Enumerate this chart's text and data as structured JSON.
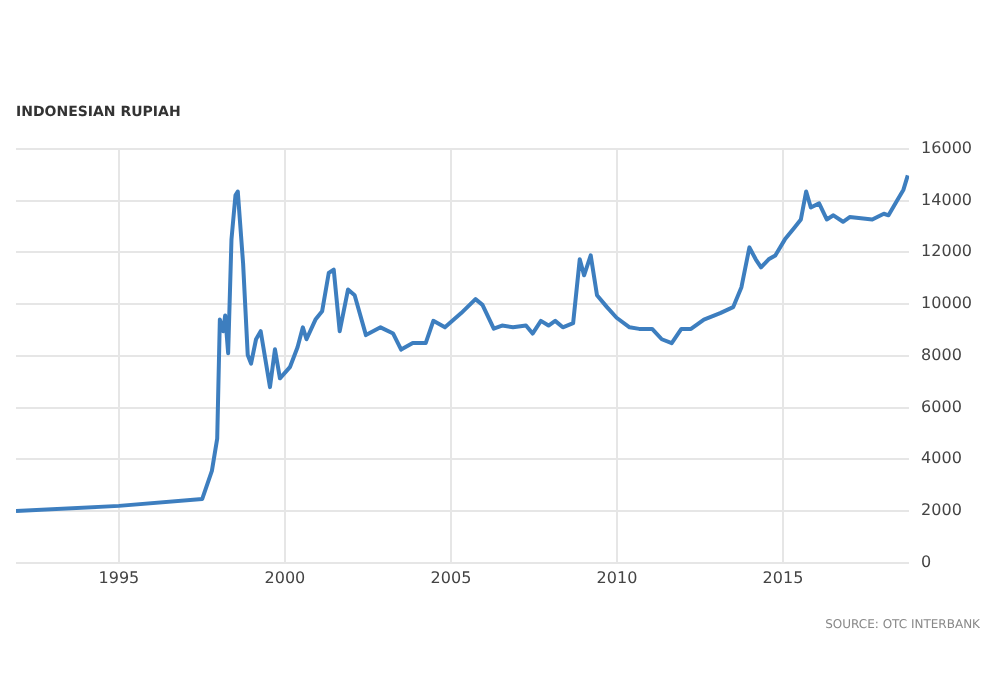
{
  "chart_data": {
    "type": "line",
    "title": "INDONESIAN RUPIAH",
    "annotations": [
      "SOURCE: OTC INTERBANK"
    ],
    "x": [
      1991.9,
      1995,
      1997.51,
      1997.8,
      1997.96,
      1998.04,
      1998.14,
      1998.2,
      1998.29,
      1998.39,
      1998.51,
      1998.58,
      1998.74,
      1998.88,
      1998.98,
      1999.13,
      1999.27,
      1999.55,
      1999.7,
      1999.85,
      2000.15,
      2000.38,
      2000.54,
      2000.65,
      2000.92,
      2001.12,
      2001.32,
      2001.47,
      2001.65,
      2001.9,
      2002.1,
      2002.44,
      2002.88,
      2003.26,
      2003.5,
      2003.85,
      2004.24,
      2004.47,
      2004.82,
      2005.31,
      2005.74,
      2005.95,
      2006.29,
      2006.54,
      2006.87,
      2007.26,
      2007.46,
      2007.71,
      2007.94,
      2008.14,
      2008.37,
      2008.68,
      2008.88,
      2009.01,
      2009.21,
      2009.4,
      2009.7,
      2009.99,
      2010.38,
      2010.67,
      2011.06,
      2011.35,
      2011.65,
      2011.94,
      2012.23,
      2012.62,
      2013.11,
      2013.5,
      2013.75,
      2013.99,
      2014.18,
      2014.34,
      2014.57,
      2014.77,
      2015.06,
      2015.35,
      2015.54,
      2015.7,
      2015.84,
      2016.09,
      2016.32,
      2016.52,
      2016.81,
      2017.01,
      2017.69,
      2018.04,
      2018.18,
      2018.43,
      2018.63,
      2018.76
    ],
    "series": [
      {
        "color": "#3d7ebf",
        "values": [
          2000,
          2200,
          2470,
          3550,
          4800,
          9400,
          8950,
          9560,
          8100,
          12500,
          14200,
          14350,
          11570,
          8030,
          7700,
          8640,
          8950,
          6790,
          8250,
          7130,
          7560,
          8330,
          9100,
          8640,
          9400,
          9720,
          11200,
          11330,
          8950,
          10560,
          10340,
          8800,
          9100,
          8860,
          8240,
          8490,
          8490,
          9350,
          9100,
          9650,
          10190,
          9970,
          9050,
          9170,
          9100,
          9170,
          8860,
          9350,
          9170,
          9350,
          9100,
          9260,
          11730,
          11110,
          11880,
          10340,
          9880,
          9470,
          9100,
          9040,
          9040,
          8640,
          8490,
          9040,
          9040,
          9400,
          9650,
          9880,
          10650,
          12190,
          11730,
          11420,
          11730,
          11880,
          12500,
          12960,
          13270,
          14350,
          13730,
          13890,
          13270,
          13430,
          13180,
          13360,
          13270,
          13490,
          13430,
          13980,
          14420,
          14970
        ]
      }
    ],
    "xlim": [
      1991.9,
      2018.8
    ],
    "xticks": [
      1995,
      2000,
      2005,
      2010,
      2015
    ],
    "ylim": [
      0,
      16000
    ],
    "yticks": [
      0,
      2000,
      4000,
      6000,
      8000,
      10000,
      12000,
      14000,
      16000
    ],
    "grid": true,
    "legend": false,
    "marker": "none",
    "line_style": "solid"
  }
}
